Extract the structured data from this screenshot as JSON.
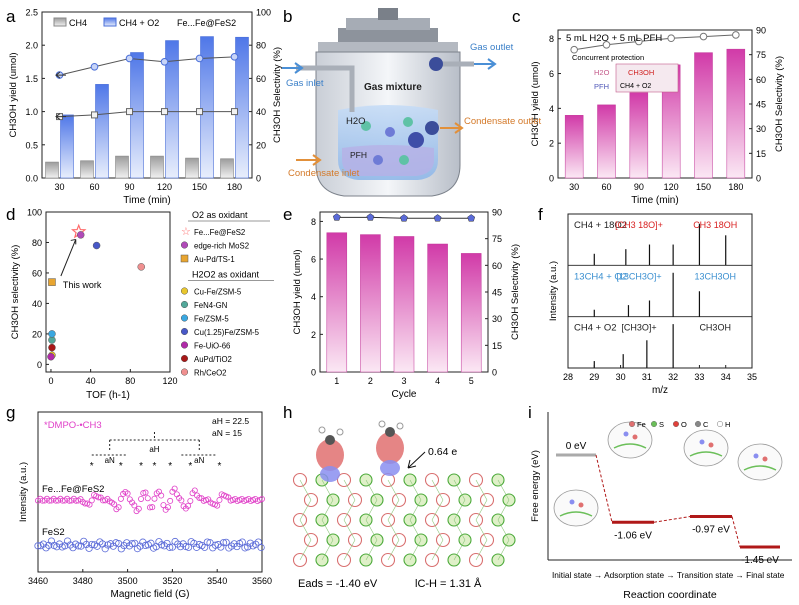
{
  "chart_data": [
    {
      "panel": "a",
      "type": "bar",
      "x": [
        30,
        60,
        90,
        120,
        150,
        180
      ],
      "xlabel": "Time (min)",
      "ylabel": "CH3OH yield (umol)",
      "y2label": "CH3OH Selectivity (%)",
      "xticks": [
        "30",
        "60",
        "90",
        "120",
        "150",
        "180"
      ],
      "yticks": [
        "0.0",
        "0.5",
        "1.0",
        "1.5",
        "2.0",
        "2.5"
      ],
      "y2ticks": [
        "0",
        "20",
        "40",
        "60",
        "80",
        "100"
      ],
      "ylim": [
        0,
        2.5
      ],
      "y2lim": [
        0,
        100
      ],
      "series": [
        {
          "name": "CH4",
          "type": "bar",
          "values": [
            0.24,
            0.26,
            0.33,
            0.33,
            0.3,
            0.29
          ]
        },
        {
          "name": "CH4 + O2",
          "type": "bar",
          "values": [
            0.95,
            1.41,
            1.89,
            2.07,
            2.13,
            2.12
          ]
        },
        {
          "type": "line",
          "axis": "right",
          "values": [
            62,
            67,
            72,
            70,
            72,
            73
          ]
        },
        {
          "type": "line",
          "axis": "right",
          "values": [
            37,
            38,
            40,
            40,
            40,
            40
          ]
        }
      ],
      "annotation": "Fe...Fe@FeS2"
    },
    {
      "panel": "b",
      "type": "diagram",
      "labels": [
        "Gas outlet",
        "Gas inlet",
        "Gas mixture",
        "H2O",
        "PFH",
        "Condensate outlet",
        "Condensate inlet"
      ]
    },
    {
      "panel": "c",
      "type": "bar",
      "x": [
        30,
        60,
        90,
        120,
        150,
        180
      ],
      "xlabel": "Time (min)",
      "ylabel": "CH3OH yield (umol)",
      "y2label": "CH3OH Selectivity (%)",
      "xticks": [
        "30",
        "60",
        "90",
        "120",
        "150",
        "180"
      ],
      "yticks": [
        "0",
        "2",
        "4",
        "6",
        "8"
      ],
      "y2ticks": [
        "0",
        "15",
        "30",
        "45",
        "60",
        "75",
        "90"
      ],
      "ylim": [
        0,
        8.5
      ],
      "y2lim": [
        0,
        90
      ],
      "series": [
        {
          "type": "bar",
          "values": [
            3.6,
            4.2,
            4.9,
            6.5,
            7.2,
            7.4
          ]
        },
        {
          "type": "line",
          "axis": "right",
          "values": [
            78,
            81,
            83,
            85,
            86,
            87
          ]
        }
      ],
      "title": "5 mL H2O + 5 mL PFH",
      "inset": {
        "title": "Concurrent protection",
        "h2o": "H2O",
        "pfh": "PFH",
        "product": "CH3OH",
        "reactants": "CH4 + O2"
      }
    },
    {
      "panel": "d",
      "type": "scatter",
      "xlabel": "TOF (h-1)",
      "ylabel": "CH3OH selectivity (%)",
      "xticks": [
        "0",
        "40",
        "80",
        "120"
      ],
      "yticks": [
        "0",
        "20",
        "40",
        "60",
        "80",
        "100"
      ],
      "xlim": [
        -5,
        120
      ],
      "ylim": [
        -5,
        100
      ],
      "annotation": "This work",
      "legend_groups": [
        "O2 as oxidant",
        "H2O2 as oxidant"
      ],
      "series": [
        {
          "name": "Fe...Fe@FeS2",
          "marker": "star",
          "color": "#ff6b6b",
          "points": [
            [
              28,
              87
            ]
          ]
        },
        {
          "name": "edge-rich MoS2",
          "color": "#b04ab8",
          "points": [
            [
              30,
              85
            ]
          ]
        },
        {
          "name": "Au-Pd/TS-1",
          "color": "#e8a530",
          "points": [
            [
              1,
              54
            ]
          ]
        },
        {
          "name": "Cu-Fe/ZSM-5",
          "color": "#e8c62d",
          "points": [
            [
              1,
              6
            ]
          ]
        },
        {
          "name": "FeN4-GN",
          "color": "#52a89a",
          "points": [
            [
              1,
              16
            ]
          ]
        },
        {
          "name": "Fe/ZSM-5",
          "color": "#3aa7e0",
          "points": [
            [
              1,
              20
            ]
          ]
        },
        {
          "name": "Cu(1.25)Fe/ZSM-5",
          "color": "#4858c8",
          "points": [
            [
              46,
              78
            ]
          ]
        },
        {
          "name": "Fe-UiO-66",
          "color": "#b02aa8",
          "points": [
            [
              0,
              5
            ]
          ]
        },
        {
          "name": "AuPd/TiO2",
          "color": "#a81818",
          "points": [
            [
              1,
              11
            ]
          ]
        },
        {
          "name": "Rh/CeO2",
          "color": "#f09090",
          "points": [
            [
              91,
              64
            ]
          ]
        }
      ]
    },
    {
      "panel": "e",
      "type": "bar",
      "x": [
        1,
        2,
        3,
        4,
        5
      ],
      "xlabel": "Cycle",
      "ylabel": "CH3OH yield (umol)",
      "y2label": "CH3OH Selectivity (%)",
      "xticks": [
        "1",
        "2",
        "3",
        "4",
        "5"
      ],
      "yticks": [
        "0",
        "2",
        "4",
        "6",
        "8"
      ],
      "y2ticks": [
        "0",
        "15",
        "30",
        "45",
        "60",
        "75",
        "90"
      ],
      "ylim": [
        0,
        8.5
      ],
      "y2lim": [
        0,
        90
      ],
      "series": [
        {
          "type": "bar",
          "values": [
            7.4,
            7.3,
            7.2,
            6.8,
            6.3
          ]
        },
        {
          "type": "line",
          "axis": "right",
          "values": [
            87,
            87,
            86.5,
            86.5,
            86.5
          ]
        }
      ]
    },
    {
      "panel": "f",
      "type": "bar",
      "xlabel": "m/z",
      "ylabel": "Intensity (a.u.)",
      "xticks": [
        "28",
        "29",
        "30",
        "31",
        "32",
        "33",
        "34",
        "35"
      ],
      "xlim": [
        28,
        35
      ],
      "traces": [
        {
          "label": "CH4 + 18O2",
          "peak_labels": [
            "[CH3 18O]+",
            "CH3 18OH"
          ],
          "peaks": [
            [
              29,
              0.25
            ],
            [
              30.2,
              0.35
            ],
            [
              31.1,
              0.45
            ],
            [
              32,
              0.45
            ],
            [
              33,
              0.9
            ],
            [
              34,
              0.65
            ]
          ]
        },
        {
          "label": "13CH4 + O2",
          "peak_labels": [
            "[13CH3O]+",
            "13CH3OH"
          ],
          "peaks": [
            [
              29,
              0.15
            ],
            [
              30.3,
              0.25
            ],
            [
              31.1,
              0.35
            ],
            [
              32,
              0.95
            ],
            [
              33,
              0.55
            ]
          ]
        },
        {
          "label": "CH4 + O2",
          "peak_labels": [
            "[CH3O]+",
            "CH3OH"
          ],
          "peaks": [
            [
              29,
              0.15
            ],
            [
              30.1,
              0.3
            ],
            [
              31,
              0.6
            ],
            [
              32,
              0.95
            ]
          ]
        }
      ]
    },
    {
      "panel": "g",
      "type": "line",
      "xlabel": "Magnetic field (G)",
      "ylabel": "Intensity (a.u.)",
      "xticks": [
        "3460",
        "3480",
        "3500",
        "3520",
        "3540",
        "3560"
      ],
      "xlim": [
        3460,
        3560
      ],
      "title": "*DMPO-•CH3",
      "params": [
        "aH = 22.5",
        "aN = 15"
      ],
      "hyperfine_labels": [
        "aH",
        "aN",
        "aN"
      ],
      "series": [
        {
          "name": "Fe...Fe@FeS2",
          "color": "#e040c8",
          "peak_fields": [
            3484,
            3497,
            3506,
            3512,
            3519,
            3528,
            3541
          ]
        },
        {
          "name": "FeS2",
          "color": "#5a6ad8"
        }
      ]
    },
    {
      "panel": "h",
      "type": "diagram",
      "charge_label": "0.64 e",
      "eads": "Eads = -1.40 eV",
      "lch": "lC-H = 1.31 Å"
    },
    {
      "panel": "i",
      "type": "diagram",
      "xlabel": "Reaction coordinate",
      "ylabel": "Free energy (eV)",
      "legend": [
        "Fe",
        "S",
        "O",
        "C",
        "H"
      ],
      "levels": [
        {
          "state": "Initial state",
          "value": 0,
          "label": "0 eV"
        },
        {
          "state": "Adsorption state",
          "value": -1.06,
          "label": "-1.06 eV"
        },
        {
          "state": "Transition state",
          "value": -0.97,
          "label": "-0.97 eV"
        },
        {
          "state": "Final state",
          "value": -1.45,
          "label": "-1.45 eV"
        }
      ],
      "states_caption": "Initial state → Adsorption state → Transition state → Final state"
    }
  ],
  "labels": {
    "a": "a",
    "b": "b",
    "c": "c",
    "d": "d",
    "e": "e",
    "f": "f",
    "g": "g",
    "h": "h",
    "i": "i"
  }
}
